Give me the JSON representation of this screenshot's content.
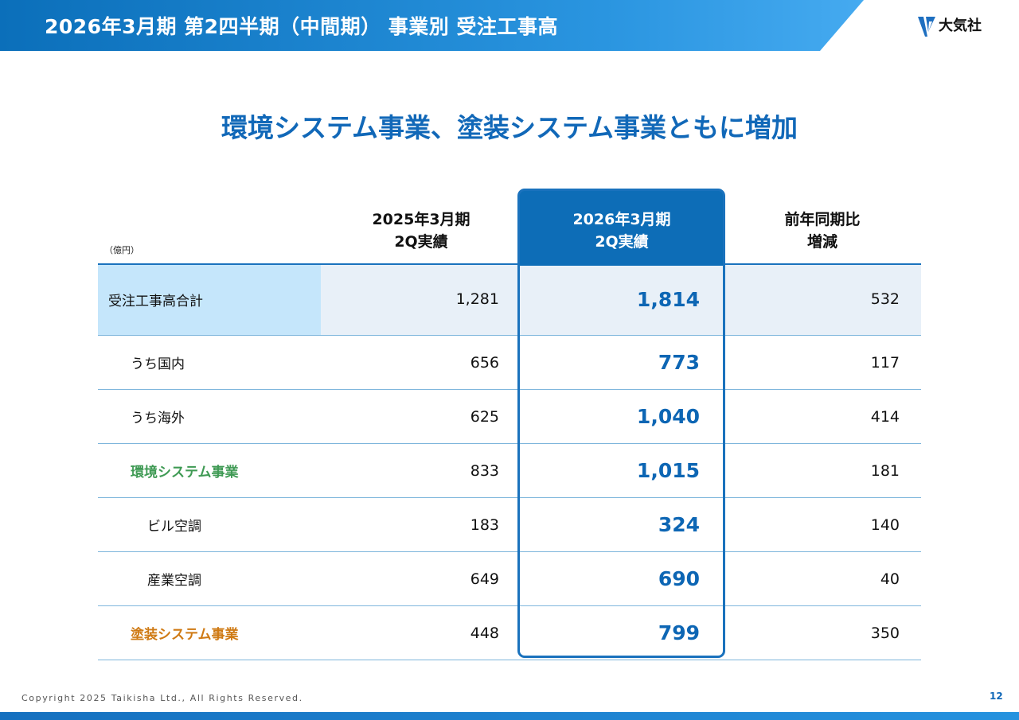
{
  "header": {
    "title": "2026年3月期 第2四半期（中間期） 事業別 受注工事高",
    "logo_text": "大気社"
  },
  "subtitle": "環境システム事業、塗装システム事業ともに増加",
  "table": {
    "unit": "（億円）",
    "columns": [
      {
        "line1": "2025年3月期",
        "line2": "2Q実績"
      },
      {
        "line1": "2026年3月期",
        "line2": "2Q実績"
      },
      {
        "line1": "前年同期比",
        "line2": "増減"
      }
    ],
    "rows": [
      {
        "label": "受注工事高合計",
        "v2025": "1,281",
        "v2026": "1,814",
        "diff": "532"
      },
      {
        "label": "うち国内",
        "v2025": "656",
        "v2026": "773",
        "diff": "117"
      },
      {
        "label": "うち海外",
        "v2025": "625",
        "v2026": "1,040",
        "diff": "414"
      },
      {
        "label": "環境システム事業",
        "v2025": "833",
        "v2026": "1,015",
        "diff": "181"
      },
      {
        "label": "ビル空調",
        "v2025": "183",
        "v2026": "324",
        "diff": "140"
      },
      {
        "label": "産業空調",
        "v2025": "649",
        "v2026": "690",
        "diff": "40"
      },
      {
        "label": "塗装システム事業",
        "v2025": "448",
        "v2026": "799",
        "diff": "350"
      }
    ]
  },
  "colors": {
    "brand_blue": "#0d6db7",
    "environment_green": "#3f9a54",
    "painting_orange": "#cf7a14"
  },
  "footer": {
    "copyright": "Copyright  2025 Taikisha Ltd., All Rights Reserved.",
    "page": "12"
  }
}
